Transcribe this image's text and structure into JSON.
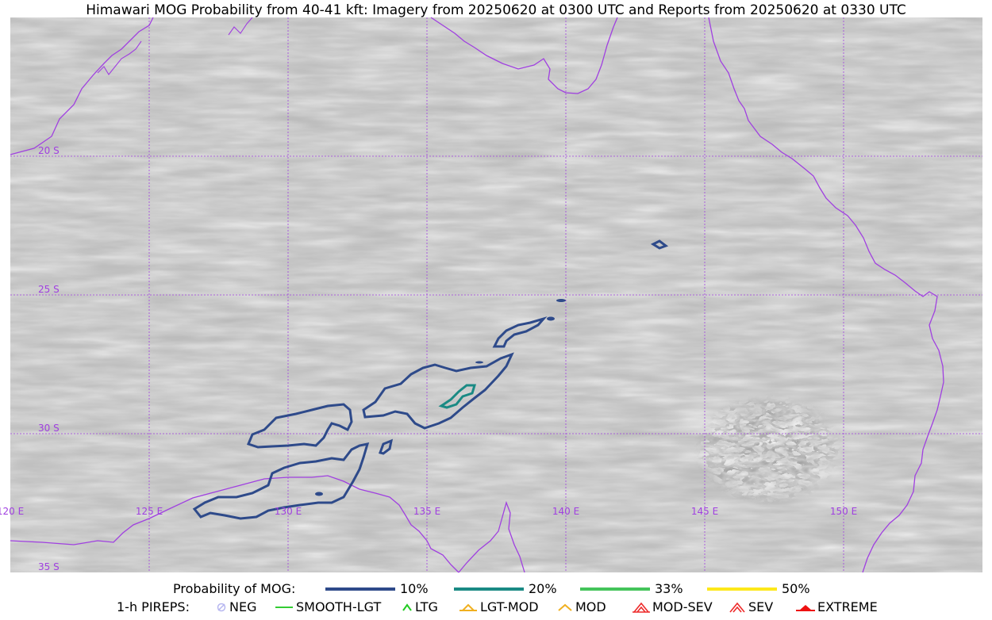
{
  "title": "Himawari MOG Probability from 40-41 kft: Imagery from 20250620 at 0300 UTC and Reports from 20250620 at 0330 UTC",
  "map": {
    "projection": "lat-lon",
    "lon_range": [
      120,
      155
    ],
    "lat_range": [
      -35,
      -15
    ],
    "grid_color": "#a040e0",
    "coast_color": "#a040e0",
    "lat_labels": [
      "20 S",
      "25 S",
      "30 S",
      "35 S"
    ],
    "lon_labels": [
      "120 E",
      "125 E",
      "130 E",
      "135 E",
      "140 E",
      "145 E",
      "150 E"
    ],
    "background": "grayscale satellite water-vapor imagery"
  },
  "legend": {
    "prob_title": "Probability of MOG:",
    "prob_levels": [
      {
        "label": "10%",
        "color": "#2e4a8a"
      },
      {
        "label": "20%",
        "color": "#1a8a84"
      },
      {
        "label": "33%",
        "color": "#44c45a"
      },
      {
        "label": "50%",
        "color": "#fde81a"
      }
    ],
    "pirep_title": "1-h PIREPS:",
    "pireps": [
      {
        "label": "NEG",
        "color": "#b7b7f0",
        "icon": "neg-circle-icon"
      },
      {
        "label": "SMOOTH-LGT",
        "color": "#33cc33",
        "icon": "line-icon"
      },
      {
        "label": "LTG",
        "color": "#22cc22",
        "icon": "caret-icon"
      },
      {
        "label": "LGT-MOD",
        "color": "#f0b020",
        "icon": "caret-bar-icon"
      },
      {
        "label": "MOD",
        "color": "#f0b020",
        "icon": "caret-icon"
      },
      {
        "label": "MOD-SEV",
        "color": "#ee2a2a",
        "icon": "double-caret-icon"
      },
      {
        "label": "SEV",
        "color": "#ee2a2a",
        "icon": "double-caret-icon"
      },
      {
        "label": "EXTREME",
        "color": "#ee1111",
        "icon": "filled-caret-icon"
      }
    ]
  }
}
